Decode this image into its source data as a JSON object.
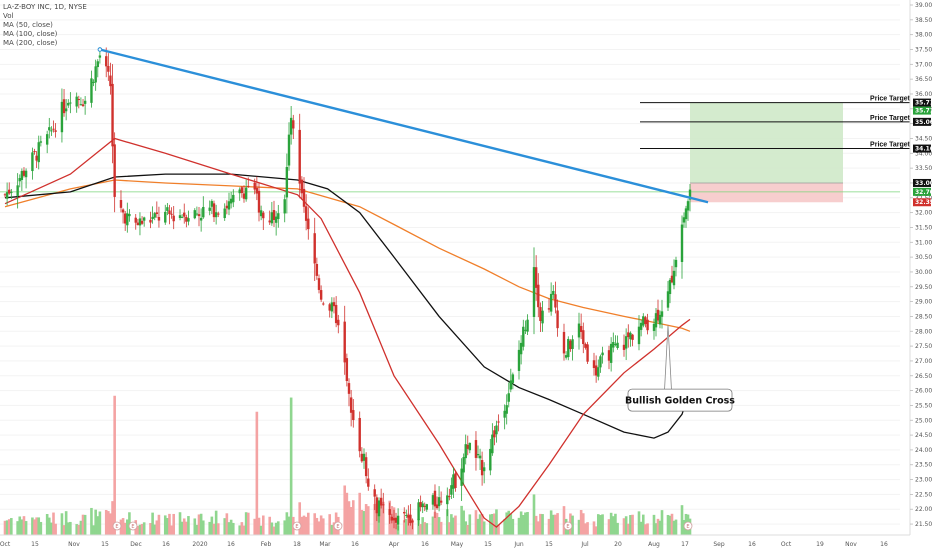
{
  "legend": {
    "title": "LA-Z-BOY INC, 1D, NYSE",
    "vol": "Vol",
    "ma50": "MA (50, close)",
    "ma100": "MA (100, close)",
    "ma200": "MA (200, close)"
  },
  "annotations": {
    "price_target": "Price Target",
    "golden_cross": "Bullish Golden Cross"
  },
  "colors": {
    "up": "#2aa33b",
    "down": "#d0312d",
    "ma50": "#d0312d",
    "ma100": "#111111",
    "ma200": "#f07f2a",
    "trendline": "#2b8fd9",
    "target_zone": "#cfe9c9",
    "stop_zone": "#f6c9c9",
    "vol_up": "#8fd68f",
    "vol_down": "#f4a3a3"
  },
  "chart_data": {
    "type": "candlestick",
    "title": "LA-Z-BOY INC, 1D, NYSE",
    "x_ticks": [
      "Oct",
      "15",
      "Nov",
      "15",
      "Dec",
      "16",
      "2020",
      "16",
      "Feb",
      "18",
      "Mar",
      "16",
      "Apr",
      "16",
      "May",
      "15",
      "Jun",
      "15",
      "Jul",
      "20",
      "Aug",
      "17",
      "Sep",
      "16",
      "Oct",
      "19",
      "Nov",
      "16"
    ],
    "y_ticks": [
      "39.00",
      "38.50",
      "38.00",
      "37.50",
      "37.00",
      "36.50",
      "36.00",
      "35.50",
      "35.00",
      "34.50",
      "34.00",
      "33.50",
      "33.00",
      "32.50",
      "32.00",
      "31.50",
      "31.00",
      "30.50",
      "30.00",
      "29.50",
      "29.00",
      "28.50",
      "28.00",
      "27.50",
      "27.00",
      "26.50",
      "26.00",
      "25.50",
      "25.00",
      "24.50",
      "24.00",
      "23.50",
      "23.00",
      "22.50",
      "22.00",
      "21.50"
    ],
    "ylim": [
      21.3,
      39.0
    ],
    "price_labels": [
      {
        "value": 35.71,
        "text": "35.71",
        "bg": "#111111"
      },
      {
        "value": 35.71,
        "text": "35.71",
        "bg": "#2aa33b",
        "offset": 1
      },
      {
        "value": 35.06,
        "text": "35.06",
        "bg": "#111111"
      },
      {
        "value": 34.16,
        "text": "34.16",
        "bg": "#111111"
      },
      {
        "value": 33.0,
        "text": "33.00",
        "bg": "#111111"
      },
      {
        "value": 32.7,
        "text": "32.70",
        "bg": "#2aa33b"
      },
      {
        "value": 32.35,
        "text": "32.35",
        "bg": "#d0312d"
      }
    ],
    "price_targets": [
      35.71,
      35.06,
      34.16
    ],
    "entry": 33.0,
    "stop": 32.35,
    "current_price": 32.7,
    "trendline": {
      "from": [
        "Nov 15",
        37.5
      ],
      "to": [
        "Aug 20",
        32.35
      ]
    },
    "series_keyframes": {
      "close": [
        [
          "Oct 1",
          32.6
        ],
        [
          "Oct 8",
          33.2
        ],
        [
          "Oct 22",
          34.6
        ],
        [
          "Nov 1",
          36.0
        ],
        [
          "Nov 8",
          35.8
        ],
        [
          "Nov 15",
          37.3
        ],
        [
          "Nov 20",
          36.3
        ],
        [
          "Nov 22",
          32.3
        ],
        [
          "Dec 1",
          31.6
        ],
        [
          "Dec 16",
          31.9
        ],
        [
          "Jan 1",
          32.0
        ],
        [
          "Jan 16",
          32.3
        ],
        [
          "Jan 25",
          33.0
        ],
        [
          "Feb 1",
          31.6
        ],
        [
          "Feb 10",
          32.6
        ],
        [
          "Feb 13",
          35.3
        ],
        [
          "Feb 16",
          33.2
        ],
        [
          "Feb 20",
          31.6
        ],
        [
          "Feb 27",
          29.2
        ],
        [
          "Mar 5",
          28.5
        ],
        [
          "Mar 9",
          26.8
        ],
        [
          "Mar 12",
          25.0
        ],
        [
          "Mar 16",
          24.2
        ],
        [
          "Mar 23",
          22.2
        ],
        [
          "Apr 1",
          21.5
        ],
        [
          "Apr 14",
          22.0
        ],
        [
          "Apr 23",
          22.3
        ],
        [
          "May 1",
          23.0
        ],
        [
          "May 7",
          24.2
        ],
        [
          "May 14",
          23.4
        ],
        [
          "May 21",
          24.8
        ],
        [
          "May 29",
          26.4
        ],
        [
          "Jun 5",
          28.6
        ],
        [
          "Jun 8",
          30.3
        ],
        [
          "Jun 11",
          28.5
        ],
        [
          "Jun 17",
          29.2
        ],
        [
          "Jun 22",
          27.2
        ],
        [
          "Jun 29",
          28.1
        ],
        [
          "Jul 6",
          26.6
        ],
        [
          "Jul 13",
          27.3
        ],
        [
          "Jul 20",
          27.6
        ],
        [
          "Jul 27",
          28.2
        ],
        [
          "Aug 3",
          28.4
        ],
        [
          "Aug 10",
          29.2
        ],
        [
          "Aug 17",
          31.6
        ],
        [
          "Aug 21",
          32.7
        ]
      ],
      "ma50": [
        [
          "Oct 1",
          32.3
        ],
        [
          "Nov 1",
          33.3
        ],
        [
          "Nov 22",
          34.5
        ],
        [
          "Dec 16",
          34.0
        ],
        [
          "Jan 16",
          33.3
        ],
        [
          "Feb 16",
          32.6
        ],
        [
          "Feb 27",
          31.8
        ],
        [
          "Mar 16",
          29.3
        ],
        [
          "Apr 1",
          26.5
        ],
        [
          "Apr 23",
          24.2
        ],
        [
          "May 7",
          22.6
        ],
        [
          "May 15",
          21.7
        ],
        [
          "May 21",
          21.4
        ],
        [
          "Jun 1",
          22.1
        ],
        [
          "Jun 15",
          23.5
        ],
        [
          "Jul 1",
          25.2
        ],
        [
          "Jul 20",
          26.6
        ],
        [
          "Aug 3",
          27.4
        ],
        [
          "Aug 17",
          28.2
        ],
        [
          "Aug 21",
          28.4
        ]
      ],
      "ma100": [
        [
          "Oct 1",
          32.5
        ],
        [
          "Nov 1",
          32.7
        ],
        [
          "Nov 22",
          33.2
        ],
        [
          "Dec 16",
          33.3
        ],
        [
          "Jan 16",
          33.3
        ],
        [
          "Feb 16",
          33.1
        ],
        [
          "Mar 1",
          32.8
        ],
        [
          "Mar 16",
          32.0
        ],
        [
          "Apr 1",
          30.5
        ],
        [
          "Apr 23",
          28.5
        ],
        [
          "May 15",
          26.8
        ],
        [
          "Jun 1",
          26.1
        ],
        [
          "Jun 15",
          25.7
        ],
        [
          "Jul 1",
          25.2
        ],
        [
          "Jul 20",
          24.6
        ],
        [
          "Aug 3",
          24.4
        ],
        [
          "Aug 10",
          24.6
        ],
        [
          "Aug 17",
          25.2
        ],
        [
          "Aug 21",
          26.0
        ]
      ],
      "ma200": [
        [
          "Oct 1",
          32.2
        ],
        [
          "Nov 1",
          32.8
        ],
        [
          "Nov 22",
          33.1
        ],
        [
          "Dec 16",
          33.0
        ],
        [
          "Jan 16",
          32.9
        ],
        [
          "Feb 16",
          32.8
        ],
        [
          "Mar 16",
          32.2
        ],
        [
          "Apr 1",
          31.6
        ],
        [
          "Apr 23",
          30.8
        ],
        [
          "May 15",
          30.1
        ],
        [
          "Jun 1",
          29.5
        ],
        [
          "Jun 15",
          29.1
        ],
        [
          "Jul 1",
          28.8
        ],
        [
          "Jul 20",
          28.5
        ],
        [
          "Aug 3",
          28.3
        ],
        [
          "Aug 17",
          28.1
        ],
        [
          "Aug 21",
          28.0
        ]
      ]
    },
    "volume_spikes": [
      "Nov 22",
      "Jan 28",
      "Feb 13"
    ]
  }
}
